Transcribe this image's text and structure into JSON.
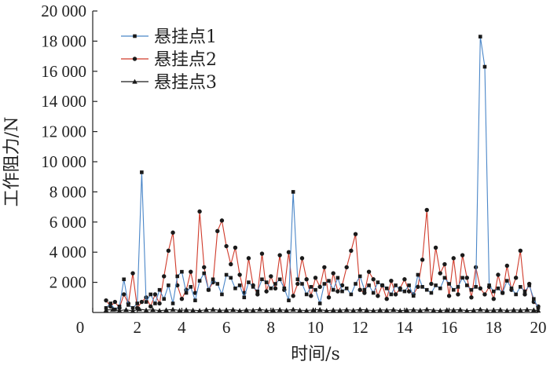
{
  "chart_data": {
    "type": "line",
    "title": "",
    "xlabel": "时间/s",
    "ylabel": "工作阻力/N",
    "xlim": [
      0,
      20
    ],
    "ylim": [
      0,
      20000
    ],
    "xticks": [
      0,
      2,
      4,
      6,
      8,
      10,
      12,
      14,
      16,
      18,
      20
    ],
    "xtick_labels": [
      "0",
      "2",
      "4",
      "6",
      "8",
      "10",
      "12",
      "14",
      "16",
      "18",
      "20"
    ],
    "yticks": [
      2000,
      4000,
      6000,
      8000,
      10000,
      12000,
      14000,
      16000,
      18000,
      20000
    ],
    "ytick_labels": [
      "2 000",
      "4 000",
      "6 000",
      "8 000",
      "10 000",
      "12 000",
      "14 000",
      "16 000",
      "18 000",
      "20 000"
    ],
    "grid": false,
    "legend": "top-left",
    "series": [
      {
        "name": "悬挂点1",
        "color": "#4a86c8",
        "marker": "square",
        "x": [
          0.6,
          0.8,
          1.0,
          1.2,
          1.4,
          1.6,
          1.8,
          2.0,
          2.2,
          2.4,
          2.6,
          2.8,
          3.0,
          3.2,
          3.4,
          3.6,
          3.8,
          4.0,
          4.2,
          4.4,
          4.6,
          4.8,
          5.0,
          5.2,
          5.4,
          5.6,
          5.8,
          6.0,
          6.2,
          6.4,
          6.6,
          6.8,
          7.0,
          7.2,
          7.4,
          7.6,
          7.8,
          8.0,
          8.2,
          8.4,
          8.6,
          8.8,
          9.0,
          9.2,
          9.4,
          9.6,
          9.8,
          10.0,
          10.2,
          10.4,
          10.6,
          10.8,
          11.0,
          11.2,
          11.4,
          11.6,
          11.8,
          12.0,
          12.2,
          12.4,
          12.6,
          12.8,
          13.0,
          13.2,
          13.4,
          13.6,
          13.8,
          14.0,
          14.2,
          14.4,
          14.6,
          14.8,
          15.0,
          15.2,
          15.4,
          15.6,
          15.8,
          16.0,
          16.2,
          16.4,
          16.6,
          16.8,
          17.0,
          17.2,
          17.4,
          17.6,
          17.8,
          18.0,
          18.2,
          18.4,
          18.6,
          18.8,
          19.0,
          19.2,
          19.4,
          19.6,
          19.8,
          20.0
        ],
        "y": [
          300,
          600,
          200,
          400,
          2200,
          500,
          300,
          600,
          9300,
          700,
          1200,
          600,
          1500,
          900,
          1800,
          600,
          2400,
          2700,
          1300,
          1700,
          800,
          2100,
          2600,
          1500,
          2200,
          1900,
          1200,
          2500,
          2300,
          1600,
          1800,
          1000,
          2000,
          1700,
          1400,
          2200,
          2000,
          1600,
          1900,
          2200,
          1600,
          800,
          8000,
          2200,
          1900,
          1200,
          1700,
          1500,
          600,
          1900,
          2100,
          1500,
          2300,
          1400,
          1600,
          1200,
          1900,
          2400,
          1500,
          1800,
          1300,
          2000,
          1800,
          1600,
          1200,
          1800,
          1500,
          1400,
          1800,
          1100,
          2500,
          1700,
          1500,
          1300,
          1800,
          1600,
          2300,
          1900,
          1500,
          1700,
          2300,
          1800,
          1500,
          1700,
          18300,
          16300,
          1800,
          1400,
          1600,
          1300,
          2100,
          1600,
          1200,
          1700,
          1400,
          1800,
          900,
          300
        ]
      },
      {
        "name": "悬挂点2",
        "color": "#d03a2a",
        "marker": "circle",
        "x": [
          0.6,
          0.8,
          1.0,
          1.2,
          1.4,
          1.6,
          1.8,
          2.0,
          2.2,
          2.4,
          2.6,
          2.8,
          3.0,
          3.2,
          3.4,
          3.6,
          3.8,
          4.0,
          4.2,
          4.4,
          4.6,
          4.8,
          5.0,
          5.2,
          5.4,
          5.6,
          5.8,
          6.0,
          6.2,
          6.4,
          6.6,
          6.8,
          7.0,
          7.2,
          7.4,
          7.6,
          7.8,
          8.0,
          8.2,
          8.4,
          8.6,
          8.8,
          9.0,
          9.2,
          9.4,
          9.6,
          9.8,
          10.0,
          10.2,
          10.4,
          10.6,
          10.8,
          11.0,
          11.2,
          11.4,
          11.6,
          11.8,
          12.0,
          12.2,
          12.4,
          12.6,
          12.8,
          13.0,
          13.2,
          13.4,
          13.6,
          13.8,
          14.0,
          14.2,
          14.4,
          14.6,
          14.8,
          15.0,
          15.2,
          15.4,
          15.6,
          15.8,
          16.0,
          16.2,
          16.4,
          16.6,
          16.8,
          17.0,
          17.2,
          17.4,
          17.6,
          17.8,
          18.0,
          18.2,
          18.4,
          18.6,
          18.8,
          19.0,
          19.2,
          19.4,
          19.6,
          19.8,
          20.0
        ],
        "y": [
          800,
          400,
          700,
          300,
          1200,
          600,
          2600,
          300,
          700,
          1000,
          400,
          1200,
          600,
          2400,
          4100,
          5300,
          1800,
          900,
          1500,
          2700,
          1300,
          6700,
          3000,
          1500,
          2000,
          5400,
          6100,
          4400,
          3200,
          4300,
          2500,
          1300,
          3600,
          1800,
          1200,
          3900,
          1400,
          2400,
          1600,
          3800,
          1500,
          4000,
          1100,
          1900,
          3600,
          2200,
          1100,
          2300,
          1700,
          3000,
          1000,
          2600,
          1400,
          1800,
          3000,
          4100,
          5200,
          1500,
          1300,
          2700,
          2200,
          1100,
          1800,
          900,
          2100,
          1200,
          1600,
          2200,
          1400,
          1200,
          1700,
          3500,
          6800,
          1900,
          4300,
          2600,
          3200,
          1100,
          3600,
          1200,
          3800,
          2300,
          1000,
          3000,
          1600,
          1200,
          1700,
          900,
          2500,
          1300,
          3100,
          1500,
          2300,
          4100,
          1200,
          1900,
          700,
          400
        ]
      },
      {
        "name": "悬挂点3",
        "color": "#1a1a1a",
        "marker": "triangle",
        "x": [
          0.6,
          0.9,
          1.2,
          1.5,
          1.8,
          2.1,
          2.4,
          2.7,
          3.0,
          3.3,
          3.6,
          3.9,
          4.2,
          4.5,
          4.8,
          5.1,
          5.4,
          5.7,
          6.0,
          6.3,
          6.6,
          6.9,
          7.2,
          7.5,
          7.8,
          8.1,
          8.4,
          8.7,
          9.0,
          9.3,
          9.6,
          9.9,
          10.2,
          10.5,
          10.8,
          11.1,
          11.4,
          11.7,
          12.0,
          12.3,
          12.6,
          12.9,
          13.2,
          13.5,
          13.8,
          14.1,
          14.4,
          14.7,
          15.0,
          15.3,
          15.6,
          15.9,
          16.2,
          16.5,
          16.8,
          17.1,
          17.4,
          17.7,
          18.0,
          18.3,
          18.6,
          18.9,
          19.2,
          19.5,
          19.8,
          20.0
        ],
        "y": [
          150,
          200,
          120,
          180,
          100,
          220,
          150,
          180,
          120,
          160,
          200,
          130,
          170,
          150,
          120,
          180,
          200,
          140,
          160,
          190,
          120,
          170,
          150,
          210,
          130,
          160,
          180,
          140,
          200,
          150,
          130,
          170,
          190,
          120,
          160,
          150,
          180,
          140,
          200,
          160,
          130,
          170,
          150,
          190,
          120,
          160,
          180,
          140,
          200,
          150,
          130,
          170,
          160,
          190,
          120,
          150,
          200,
          140,
          160,
          180,
          130,
          170,
          150,
          190,
          160,
          120
        ]
      }
    ]
  }
}
